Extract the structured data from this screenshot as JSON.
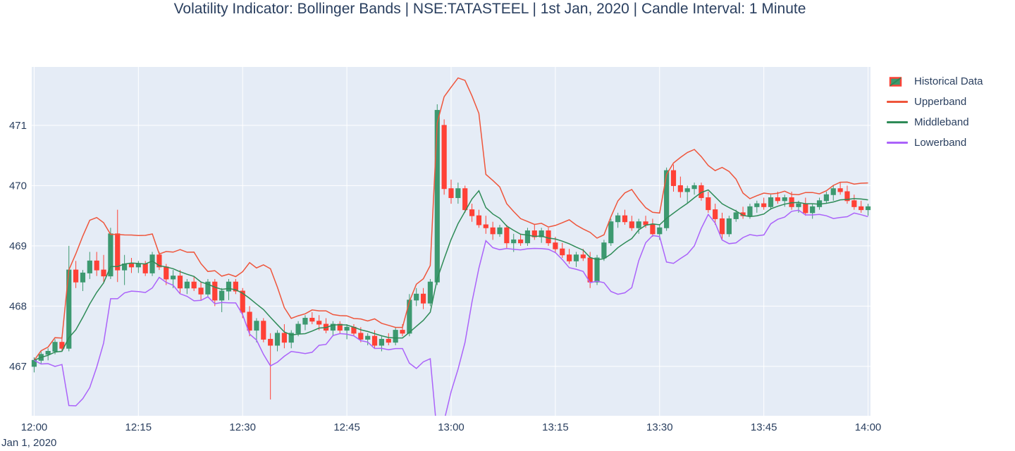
{
  "chart_data": {
    "type": "candlestick",
    "title": "Volatility Indicator: Bollinger Bands | NSE:TATASTEEL | 1st Jan, 2020 | Candle Interval: 1 Minute",
    "x_axis_date": "Jan 1, 2020",
    "x_tick_labels": [
      "12:00",
      "12:15",
      "12:30",
      "12:45",
      "13:00",
      "13:15",
      "13:30",
      "13:45",
      "14:00"
    ],
    "x_tick_minutes": [
      0,
      15,
      30,
      45,
      60,
      75,
      90,
      105,
      120
    ],
    "y_tick_labels": [
      "467",
      "468",
      "469",
      "470",
      "471"
    ],
    "y_tick_values": [
      467,
      468,
      469,
      470,
      471
    ],
    "xlim": [
      -0.35,
      120.35
    ],
    "ylim": [
      466.18,
      471.97
    ],
    "grid": true,
    "legend_position": "right-top",
    "series": [
      {
        "name": "Historical Data",
        "type": "candlestick"
      },
      {
        "name": "Upperband",
        "type": "line",
        "color": "#EF553B"
      },
      {
        "name": "Middleband",
        "type": "line",
        "color": "#2E8B57"
      },
      {
        "name": "Lowerband",
        "type": "line",
        "color": "#AB63FA"
      }
    ],
    "bands": {
      "window": 7,
      "stddev_mult": 2.2,
      "basis": "close"
    },
    "colors": {
      "increasing": "#3D9970",
      "decreasing": "#FF4136",
      "plot_bg": "#E5ECF6",
      "grid": "#FFFFFF",
      "text": "#2A3F5F"
    },
    "x_unit": "minutes since 12:00 (1 candle per minute)",
    "ohlc_format": [
      "open",
      "high",
      "low",
      "close"
    ],
    "ohlc": [
      [
        467.0,
        467.15,
        466.9,
        467.1
      ],
      [
        467.1,
        467.25,
        467.05,
        467.2
      ],
      [
        467.2,
        467.3,
        467.1,
        467.25
      ],
      [
        467.25,
        467.45,
        467.2,
        467.4
      ],
      [
        467.4,
        467.5,
        467.25,
        467.3
      ],
      [
        467.3,
        469.0,
        467.25,
        468.6
      ],
      [
        468.6,
        468.75,
        468.3,
        468.4
      ],
      [
        468.4,
        468.6,
        468.25,
        468.55
      ],
      [
        468.55,
        468.9,
        468.45,
        468.75
      ],
      [
        468.75,
        468.9,
        468.5,
        468.6
      ],
      [
        468.6,
        468.85,
        468.4,
        468.5
      ],
      [
        468.5,
        469.3,
        468.45,
        469.2
      ],
      [
        469.2,
        469.6,
        468.4,
        468.6
      ],
      [
        468.6,
        468.85,
        468.35,
        468.7
      ],
      [
        468.7,
        468.8,
        468.55,
        468.65
      ],
      [
        468.65,
        468.75,
        468.55,
        468.7
      ],
      [
        468.7,
        468.75,
        468.5,
        468.55
      ],
      [
        468.55,
        468.9,
        468.5,
        468.85
      ],
      [
        468.85,
        468.9,
        468.6,
        468.65
      ],
      [
        468.65,
        468.7,
        468.35,
        468.45
      ],
      [
        468.45,
        468.6,
        468.3,
        468.5
      ],
      [
        468.5,
        468.6,
        468.2,
        468.3
      ],
      [
        468.3,
        468.45,
        468.2,
        468.4
      ],
      [
        468.4,
        468.5,
        468.25,
        468.3
      ],
      [
        468.3,
        468.4,
        468.1,
        468.2
      ],
      [
        468.2,
        468.45,
        468.15,
        468.4
      ],
      [
        468.4,
        468.45,
        468.0,
        468.1
      ],
      [
        468.1,
        468.3,
        467.9,
        468.25
      ],
      [
        468.25,
        468.45,
        468.1,
        468.4
      ],
      [
        468.4,
        468.45,
        468.2,
        468.25
      ],
      [
        468.25,
        468.3,
        467.8,
        467.9
      ],
      [
        467.9,
        468.0,
        467.5,
        467.6
      ],
      [
        467.6,
        467.8,
        467.4,
        467.75
      ],
      [
        467.75,
        467.8,
        467.4,
        467.45
      ],
      [
        467.45,
        467.55,
        466.45,
        467.35
      ],
      [
        467.35,
        467.6,
        467.25,
        467.55
      ],
      [
        467.55,
        467.7,
        467.3,
        467.4
      ],
      [
        467.4,
        467.6,
        467.3,
        467.55
      ],
      [
        467.55,
        467.75,
        467.5,
        467.7
      ],
      [
        467.7,
        467.85,
        467.6,
        467.8
      ],
      [
        467.8,
        467.9,
        467.7,
        467.75
      ],
      [
        467.75,
        467.85,
        467.6,
        467.7
      ],
      [
        467.7,
        467.8,
        467.55,
        467.6
      ],
      [
        467.6,
        467.75,
        467.5,
        467.7
      ],
      [
        467.7,
        467.75,
        467.55,
        467.6
      ],
      [
        467.6,
        467.7,
        467.45,
        467.65
      ],
      [
        467.65,
        467.7,
        467.5,
        467.55
      ],
      [
        467.55,
        467.65,
        467.4,
        467.45
      ],
      [
        467.45,
        467.55,
        467.35,
        467.5
      ],
      [
        467.5,
        467.6,
        467.3,
        467.35
      ],
      [
        467.35,
        467.5,
        467.25,
        467.45
      ],
      [
        467.45,
        467.55,
        467.35,
        467.4
      ],
      [
        467.4,
        467.65,
        467.35,
        467.6
      ],
      [
        467.6,
        467.7,
        467.5,
        467.55
      ],
      [
        467.55,
        468.2,
        467.5,
        468.1
      ],
      [
        468.1,
        468.3,
        468.0,
        468.2
      ],
      [
        468.2,
        468.3,
        467.95,
        468.05
      ],
      [
        468.05,
        468.45,
        468.0,
        468.4
      ],
      [
        468.4,
        471.35,
        468.35,
        471.25
      ],
      [
        471.0,
        471.1,
        469.85,
        469.95
      ],
      [
        469.95,
        470.1,
        469.7,
        469.8
      ],
      [
        469.8,
        470.05,
        469.7,
        469.95
      ],
      [
        469.95,
        470.0,
        469.55,
        469.6
      ],
      [
        469.6,
        469.7,
        469.4,
        469.5
      ],
      [
        469.5,
        469.6,
        469.3,
        469.35
      ],
      [
        469.35,
        469.5,
        469.2,
        469.3
      ],
      [
        469.3,
        469.4,
        469.1,
        469.2
      ],
      [
        469.2,
        469.35,
        469.15,
        469.3
      ],
      [
        469.3,
        469.35,
        468.95,
        469.05
      ],
      [
        469.05,
        469.2,
        468.9,
        469.1
      ],
      [
        469.1,
        469.2,
        469.0,
        469.05
      ],
      [
        469.05,
        469.3,
        469.0,
        469.25
      ],
      [
        469.25,
        469.35,
        469.1,
        469.15
      ],
      [
        469.15,
        469.3,
        469.05,
        469.25
      ],
      [
        469.25,
        469.3,
        469.0,
        469.05
      ],
      [
        469.05,
        469.15,
        468.9,
        468.95
      ],
      [
        468.95,
        469.05,
        468.8,
        468.85
      ],
      [
        468.85,
        468.95,
        468.7,
        468.75
      ],
      [
        468.75,
        468.9,
        468.65,
        468.85
      ],
      [
        468.85,
        468.95,
        468.75,
        468.8
      ],
      [
        468.8,
        468.9,
        468.3,
        468.4
      ],
      [
        468.4,
        468.85,
        468.35,
        468.8
      ],
      [
        468.8,
        469.1,
        468.75,
        469.05
      ],
      [
        469.05,
        469.45,
        469.0,
        469.4
      ],
      [
        469.4,
        469.55,
        469.3,
        469.5
      ],
      [
        469.5,
        469.6,
        469.35,
        469.4
      ],
      [
        469.4,
        469.5,
        469.25,
        469.3
      ],
      [
        469.3,
        469.45,
        469.2,
        469.4
      ],
      [
        469.4,
        469.5,
        469.3,
        469.35
      ],
      [
        469.35,
        469.45,
        469.15,
        469.2
      ],
      [
        469.2,
        469.35,
        469.1,
        469.3
      ],
      [
        469.3,
        470.3,
        469.25,
        470.25
      ],
      [
        470.25,
        470.35,
        469.9,
        470.0
      ],
      [
        470.0,
        470.15,
        469.8,
        469.9
      ],
      [
        469.9,
        470.0,
        469.7,
        469.95
      ],
      [
        469.95,
        470.05,
        469.85,
        470.0
      ],
      [
        470.0,
        470.05,
        469.75,
        469.8
      ],
      [
        469.8,
        469.9,
        469.55,
        469.6
      ],
      [
        469.6,
        469.7,
        469.35,
        469.45
      ],
      [
        469.45,
        469.55,
        469.1,
        469.2
      ],
      [
        469.2,
        469.5,
        469.15,
        469.45
      ],
      [
        469.45,
        469.6,
        469.4,
        469.55
      ],
      [
        469.55,
        469.65,
        469.45,
        469.5
      ],
      [
        469.5,
        469.7,
        469.45,
        469.65
      ],
      [
        469.65,
        469.75,
        469.55,
        469.7
      ],
      [
        469.7,
        469.8,
        469.6,
        469.65
      ],
      [
        469.65,
        469.85,
        469.6,
        469.8
      ],
      [
        469.8,
        469.9,
        469.7,
        469.75
      ],
      [
        469.75,
        469.85,
        469.65,
        469.8
      ],
      [
        469.8,
        469.9,
        469.6,
        469.65
      ],
      [
        469.65,
        469.75,
        469.55,
        469.7
      ],
      [
        469.7,
        469.8,
        469.5,
        469.55
      ],
      [
        469.55,
        469.7,
        469.45,
        469.65
      ],
      [
        469.65,
        469.8,
        469.6,
        469.75
      ],
      [
        469.75,
        469.9,
        469.7,
        469.85
      ],
      [
        469.85,
        470.0,
        469.75,
        469.95
      ],
      [
        469.95,
        470.05,
        469.85,
        469.9
      ],
      [
        469.9,
        470.0,
        469.7,
        469.75
      ],
      [
        469.75,
        469.85,
        469.6,
        469.65
      ],
      [
        469.65,
        469.75,
        469.55,
        469.6
      ],
      [
        469.6,
        469.7,
        469.5,
        469.65
      ]
    ]
  }
}
